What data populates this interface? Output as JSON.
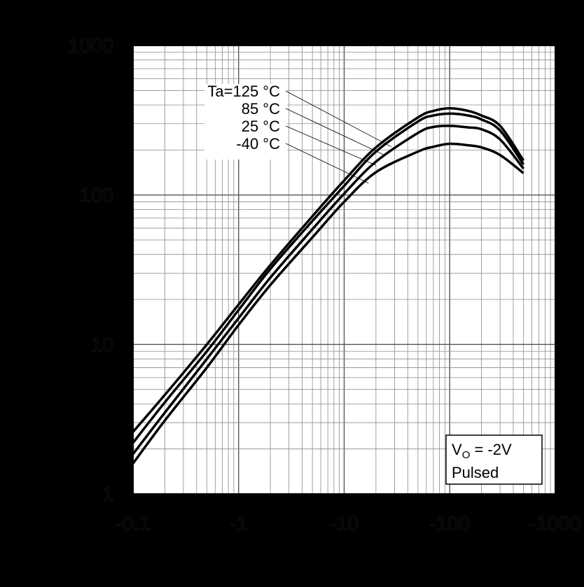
{
  "chart_data": {
    "type": "line",
    "title": "",
    "xlabel": "",
    "ylabel": "",
    "x_scale": "log",
    "y_scale": "log",
    "xlim": [
      -0.1,
      -1000
    ],
    "ylim": [
      1,
      1000
    ],
    "grid": true,
    "x_tick_labels": [
      "-0.1",
      "-1",
      "-10",
      "-100",
      "-1000"
    ],
    "y_tick_labels": [
      "1",
      "10",
      "100",
      "1000"
    ],
    "series": [
      {
        "name": "Ta=125 °C",
        "x": [
          -0.1,
          -0.2,
          -0.5,
          -1,
          -2,
          -5,
          -10,
          -20,
          -50,
          -70,
          -100,
          -150,
          -200,
          -300,
          -500
        ],
        "y": [
          2.6,
          4.6,
          10,
          18.5,
          34,
          72,
          125,
          208,
          330,
          365,
          380,
          365,
          340,
          290,
          170
        ]
      },
      {
        "name": "85 °C",
        "x": [
          -0.1,
          -0.2,
          -0.5,
          -1,
          -2,
          -5,
          -10,
          -20,
          -50,
          -70,
          -100,
          -150,
          -200,
          -300,
          -500
        ],
        "y": [
          2.2,
          4.1,
          9,
          17,
          32,
          67,
          115,
          195,
          310,
          340,
          350,
          340,
          320,
          270,
          160
        ]
      },
      {
        "name": "25 °C",
        "x": [
          -0.1,
          -0.2,
          -0.5,
          -1,
          -2,
          -5,
          -10,
          -20,
          -50,
          -70,
          -100,
          -150,
          -200,
          -300,
          -500
        ],
        "y": [
          1.85,
          3.5,
          8,
          15,
          28,
          59,
          102,
          167,
          260,
          285,
          290,
          283,
          275,
          235,
          150
        ]
      },
      {
        "name": "-40 °C",
        "x": [
          -0.1,
          -0.2,
          -0.5,
          -1,
          -2,
          -5,
          -10,
          -20,
          -50,
          -70,
          -100,
          -150,
          -200,
          -300,
          -500
        ],
        "y": [
          1.6,
          3.1,
          7,
          13.5,
          25,
          52,
          90,
          142,
          195,
          210,
          220,
          215,
          208,
          185,
          140
        ]
      }
    ],
    "legend_title_prefix": "Ta=",
    "legend_labels": [
      "125 °C",
      "85 °C",
      "25 °C",
      "-40 °C"
    ],
    "annotation": {
      "line1_main": "V",
      "line1_sub": "O",
      "line1_rest": " = -2V",
      "line2": "Pulsed"
    }
  }
}
